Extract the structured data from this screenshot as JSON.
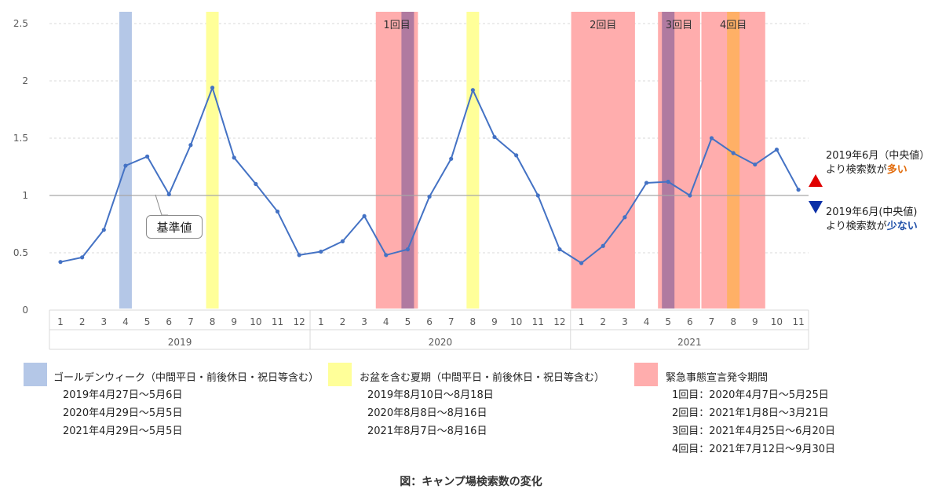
{
  "chart_data": {
    "type": "line",
    "title": "",
    "xlabel": "",
    "ylabel": "",
    "ylim": [
      0,
      2.5
    ],
    "yticks": [
      "0",
      "0.5",
      "1",
      "1.5",
      "2",
      "2.5"
    ],
    "grid": true,
    "x_month_labels": [
      "1",
      "2",
      "3",
      "4",
      "5",
      "6",
      "7",
      "8",
      "9",
      "10",
      "11",
      "12",
      "1",
      "2",
      "3",
      "4",
      "5",
      "6",
      "7",
      "8",
      "9",
      "10",
      "11",
      "12",
      "1",
      "2",
      "3",
      "4",
      "5",
      "6",
      "7",
      "8",
      "9",
      "10",
      "11"
    ],
    "years": [
      {
        "label": "2019",
        "months": 12
      },
      {
        "label": "2020",
        "months": 12
      },
      {
        "label": "2021",
        "months": 11
      }
    ],
    "series": [
      {
        "values": [
          0.42,
          0.46,
          0.7,
          1.26,
          1.34,
          1.01,
          1.44,
          1.94,
          1.33,
          1.1,
          0.86,
          0.48,
          0.51,
          0.6,
          0.82,
          0.48,
          0.53,
          0.99,
          1.32,
          1.92,
          1.51,
          1.35,
          1.0,
          0.53,
          0.41,
          0.56,
          0.81,
          1.11,
          1.12,
          1.0,
          1.5,
          1.37,
          1.27,
          1.4,
          1.05
        ],
        "color": "#4472c4"
      }
    ],
    "baseline": {
      "value": 1,
      "label": "基準値",
      "color": "#a6a6a6"
    },
    "bands": [
      {
        "kind": "gw",
        "year": 2019,
        "from": 4,
        "to": 4,
        "color": "#b4c7e7",
        "label": ""
      },
      {
        "kind": "obon",
        "year": 2019,
        "from": 8,
        "to": 8,
        "color": "#ffff99",
        "label": ""
      },
      {
        "kind": "emergency",
        "year": 2020,
        "from": 4,
        "to": 5,
        "color": "#ffadad",
        "label": "1回目"
      },
      {
        "kind": "gw",
        "year": 2020,
        "from": 5,
        "to": 5,
        "color": "#b07aa0",
        "label": ""
      },
      {
        "kind": "obon",
        "year": 2020,
        "from": 8,
        "to": 8,
        "color": "#ffff99",
        "label": ""
      },
      {
        "kind": "emergency",
        "year": 2021,
        "from": 1,
        "to": 3,
        "color": "#ffadad",
        "label": "2回目"
      },
      {
        "kind": "emergency",
        "year": 2021,
        "from": 5,
        "to": 6,
        "color": "#ffadad",
        "label": "3回目"
      },
      {
        "kind": "gw",
        "year": 2021,
        "from": 5,
        "to": 5,
        "color": "#b07aa0",
        "label": ""
      },
      {
        "kind": "emergency",
        "year": 2021,
        "from": 7,
        "to": 9,
        "color": "#ffadad",
        "label": "4回目"
      },
      {
        "kind": "obon",
        "year": 2021,
        "from": 8,
        "to": 8,
        "color": "#ffb066",
        "label": ""
      }
    ]
  },
  "annotations": {
    "up": {
      "line1": "2019年6月（中央値）",
      "line2_pre": "より検索数が",
      "line2_hl": "多い",
      "color": "#e00000"
    },
    "down": {
      "line1": "2019年6月(中央値)",
      "line2_pre": "より検索数が",
      "line2_hl": "少ない",
      "color": "#0a2fa8"
    }
  },
  "legend": {
    "gw": {
      "title": "ゴールデンウィーク（中間平日・前後休日・祝日等含む）",
      "color": "#b4c7e7",
      "lines": [
        "2019年4月27日〜5月6日",
        "2020年4月29日〜5月5日",
        "2021年4月29日〜5月5日"
      ]
    },
    "obon": {
      "title": "お盆を含む夏期（中間平日・前後休日・祝日等含む）",
      "color": "#ffff99",
      "lines": [
        "2019年8月10日〜8月18日",
        "2020年8月8日〜8月16日",
        "2021年8月7日〜8月16日"
      ]
    },
    "emergency": {
      "title": "緊急事態宣言発令期間",
      "color": "#ffadad",
      "lines": [
        "1回目：2020年4月7日〜5月25日",
        "2回目：2021年1月8日〜3月21日",
        "3回目：2021年4月25日〜6月20日",
        "4回目：2021年7月12日〜9月30日"
      ]
    }
  },
  "caption": "図：キャンプ場検索数の変化"
}
